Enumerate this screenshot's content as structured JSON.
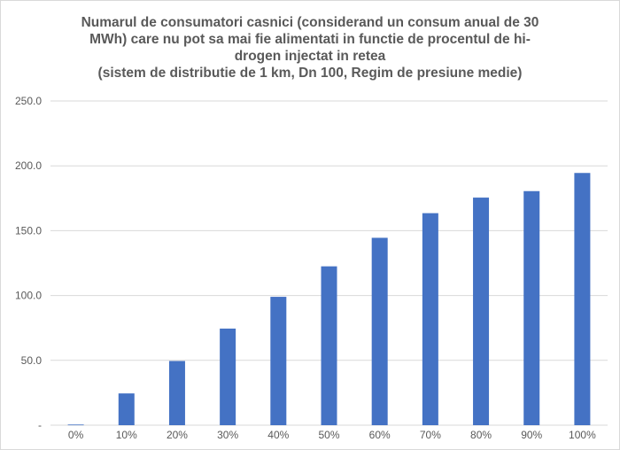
{
  "chart_data": {
    "type": "bar",
    "title_lines": [
      "Numarul de consumatori casnici (considerand un consum anual de 30",
      "MWh) care nu pot sa mai fie alimentati in functie de procentul de hi-",
      "drogen injectat in retea",
      "(sistem de distributie de 1 km, Dn 100, Regim de presiune medie)"
    ],
    "categories": [
      "0%",
      "10%",
      "20%",
      "30%",
      "40%",
      "50%",
      "60%",
      "70%",
      "80%",
      "90%",
      "100%"
    ],
    "values": [
      0.5,
      24.5,
      49.5,
      74.5,
      99,
      122.5,
      144.5,
      163.5,
      175.5,
      180.5,
      194.5
    ],
    "ylim": [
      0,
      250
    ],
    "yticks": [
      0,
      50,
      100,
      150,
      200,
      250
    ],
    "ytick_labels": [
      "-",
      "50.0",
      "100.0",
      "150.0",
      "200.0",
      "250.0"
    ],
    "xlabel": "",
    "ylabel": "",
    "grid": true,
    "legend": "none",
    "colors": {
      "bar": "#4472c4",
      "grid": "#d9d9d9",
      "text": "#595959"
    }
  }
}
